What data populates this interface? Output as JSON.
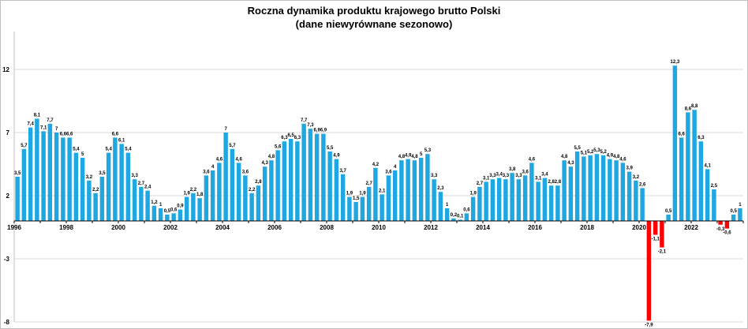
{
  "chart_data": {
    "type": "bar",
    "title": "Roczna dynamika produktu krajowego brutto Polski",
    "subtitle": "(dane niewyrównane sezonowo)",
    "xlabel": "",
    "ylabel": "",
    "ylim": [
      -8,
      15
    ],
    "y_ticks": [
      -8,
      -3,
      2,
      7,
      12
    ],
    "x_tick_labels": [
      "1996",
      "1998",
      "2000",
      "2002",
      "2004",
      "2006",
      "2008",
      "2010",
      "2012",
      "2014",
      "2016",
      "2018",
      "2020",
      "2022"
    ],
    "grid": true,
    "legend": "none",
    "colors": {
      "positive": "#1ea7e1",
      "negative": "#ff0000",
      "grid": "#d9d9d9",
      "axis": "#000000"
    },
    "values": [
      3.5,
      5.7,
      7.4,
      8.1,
      7.1,
      7.7,
      7.0,
      6.6,
      6.6,
      5.4,
      5.0,
      3.2,
      2.2,
      3.5,
      5.4,
      6.6,
      6.1,
      5.4,
      3.3,
      2.7,
      2.4,
      1.2,
      1.0,
      0.5,
      0.6,
      0.9,
      1.9,
      2.2,
      1.8,
      3.6,
      4.0,
      4.6,
      7.0,
      5.7,
      4.6,
      3.6,
      2.2,
      2.8,
      4.3,
      4.8,
      5.6,
      6.3,
      6.5,
      6.3,
      7.7,
      7.3,
      6.9,
      6.9,
      5.5,
      4.9,
      3.7,
      1.9,
      1.5,
      1.9,
      2.7,
      4.2,
      2.1,
      3.6,
      4.0,
      4.8,
      4.9,
      4.8,
      5.0,
      5.3,
      3.3,
      2.3,
      1.0,
      0.2,
      0.1,
      0.6,
      1.9,
      2.7,
      3.1,
      3.3,
      3.4,
      3.3,
      3.8,
      3.3,
      3.6,
      4.6,
      3.1,
      3.4,
      2.8,
      2.8,
      4.8,
      4.3,
      5.5,
      5.1,
      5.2,
      5.3,
      5.2,
      4.9,
      4.8,
      4.6,
      3.9,
      3.2,
      2.6,
      -7.9,
      -1.1,
      -2.1,
      0.5,
      12.3,
      6.6,
      8.6,
      8.8,
      6.3,
      4.1,
      2.5,
      -0.3,
      -0.6,
      0.5,
      1.0
    ],
    "labels": [
      "3,5",
      "5,7",
      "7,4",
      "8,1",
      "7,1",
      "7,7",
      "7",
      "6,6",
      "6,6",
      "5,4",
      "5",
      "3,2",
      "2,2",
      "3,5",
      "5,4",
      "6,6",
      "6,1",
      "5,4",
      "3,3",
      "2,7",
      "2,4",
      "1,2",
      "1",
      "0,5",
      "0,6",
      "0,9",
      "1,9",
      "2,2",
      "1,8",
      "3,6",
      "4",
      "4,6",
      "7",
      "5,7",
      "4,6",
      "3,6",
      "2,2",
      "2,8",
      "4,3",
      "4,8",
      "5,6",
      "6,3",
      "6,5",
      "6,3",
      "7,7",
      "7,3",
      "6,9",
      "6,9",
      "5,5",
      "4,9",
      "3,7",
      "1,9",
      "1,5",
      "1,9",
      "2,7",
      "4,2",
      "2,1",
      "3,6",
      "4",
      "4,8",
      "4,9",
      "4,8",
      "5",
      "5,3",
      "3,3",
      "2,3",
      "1",
      "0,2",
      "0,1",
      "0,6",
      "1,9",
      "2,7",
      "3,1",
      "3,3",
      "3,4",
      "3,3",
      "3,8",
      "3,3",
      "3,6",
      "4,6",
      "3,1",
      "3,4",
      "2,8",
      "2,8",
      "4,8",
      "4,3",
      "5,5",
      "5,1",
      "5,2",
      "5,3",
      "5,2",
      "4,9",
      "4,8",
      "4,6",
      "3,9",
      "3,2",
      "2,6",
      "-7,9",
      "-1,1",
      "-2,1",
      "0,5",
      "12,3",
      "6,6",
      "8,6",
      "8,8",
      "6,3",
      "4,1",
      "2,5",
      "-0,3",
      "-0,6",
      "0,5",
      "1"
    ]
  }
}
